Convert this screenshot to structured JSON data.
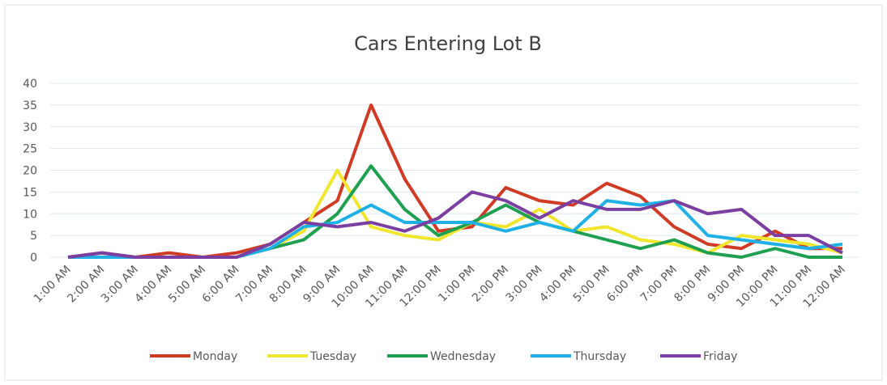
{
  "chart_data": {
    "type": "line",
    "title": "Cars Entering Lot B",
    "categories": [
      "1:00 AM",
      "2:00 AM",
      "3:00 AM",
      "4:00 AM",
      "5:00 AM",
      "6:00 AM",
      "7:00 AM",
      "8:00 AM",
      "9:00 AM",
      "10:00 AM",
      "11:00 AM",
      "12:00 PM",
      "1:00 PM",
      "2:00 PM",
      "3:00 PM",
      "4:00 PM",
      "5:00 PM",
      "6:00 PM",
      "7:00 PM",
      "8:00 PM",
      "9:00 PM",
      "10:00 PM",
      "11:00 PM",
      "12:00 AM"
    ],
    "series": [
      {
        "name": "Monday",
        "color": "#d03b25",
        "values": [
          0,
          1,
          0,
          1,
          0,
          1,
          3,
          8,
          13,
          35,
          18,
          6,
          7,
          16,
          13,
          12,
          17,
          14,
          7,
          3,
          2,
          6,
          2,
          2
        ]
      },
      {
        "name": "Tuesday",
        "color": "#f0e62e",
        "values": [
          0,
          0,
          0,
          0,
          0,
          0,
          2,
          6,
          20,
          7,
          5,
          4,
          8,
          7,
          11,
          6,
          7,
          4,
          3,
          1,
          5,
          4,
          3,
          1
        ]
      },
      {
        "name": "Wednesday",
        "color": "#1fa050",
        "values": [
          0,
          0,
          0,
          0,
          0,
          0,
          2,
          4,
          10,
          21,
          11,
          5,
          8,
          12,
          8,
          6,
          4,
          2,
          4,
          1,
          0,
          2,
          0,
          0
        ]
      },
      {
        "name": "Thursday",
        "color": "#1fb0e6",
        "values": [
          0,
          0,
          0,
          0,
          0,
          0,
          2,
          7,
          8,
          12,
          8,
          8,
          8,
          6,
          8,
          6,
          13,
          12,
          13,
          5,
          4,
          3,
          2,
          3
        ]
      },
      {
        "name": "Friday",
        "color": "#7a3fa0",
        "values": [
          0,
          1,
          0,
          0,
          0,
          0,
          3,
          8,
          7,
          8,
          6,
          9,
          15,
          13,
          9,
          13,
          11,
          11,
          13,
          10,
          11,
          5,
          5,
          1
        ]
      }
    ],
    "ylim": [
      0,
      40
    ],
    "yticks": [
      0,
      5,
      10,
      15,
      20,
      25,
      30,
      35,
      40
    ],
    "grid": true,
    "legend": "bottom"
  }
}
